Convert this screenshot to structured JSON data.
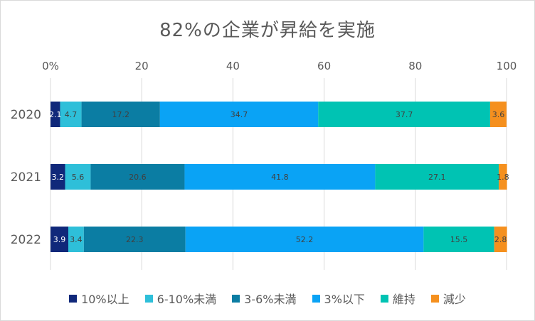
{
  "chart_data": {
    "type": "bar",
    "orientation": "horizontal",
    "stacked": true,
    "title": "82%の企業が昇給を実施",
    "categories": [
      "2020",
      "2021",
      "2022"
    ],
    "series": [
      {
        "name": "10%以上",
        "color": "#10287a",
        "values": [
          2.1,
          3.2,
          3.9
        ]
      },
      {
        "name": "6-10%未満",
        "color": "#2ebfd9",
        "values": [
          4.7,
          5.6,
          3.4
        ]
      },
      {
        "name": "3-6%未満",
        "color": "#0b7da3",
        "values": [
          17.2,
          20.6,
          22.3
        ]
      },
      {
        "name": "3%以下",
        "color": "#0aa3f5",
        "values": [
          34.7,
          41.8,
          52.2
        ]
      },
      {
        "name": "維持",
        "color": "#00c3b3",
        "values": [
          37.7,
          27.1,
          15.5
        ]
      },
      {
        "name": "減少",
        "color": "#f5901e",
        "values": [
          3.6,
          1.8,
          2.8
        ]
      }
    ],
    "xticks": [
      "0%",
      "20",
      "40",
      "60",
      "80",
      "100"
    ],
    "xlim": [
      0,
      100
    ],
    "xaxis_position": "top",
    "legend_position": "bottom",
    "gridlines": true
  }
}
